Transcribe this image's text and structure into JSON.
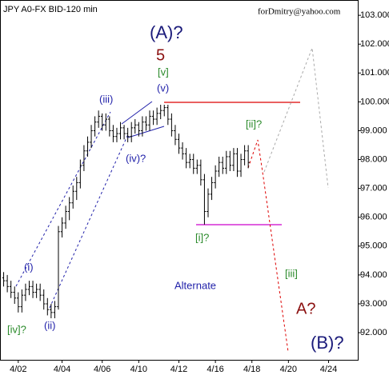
{
  "chart_data": {
    "type": "ohlc",
    "title": "JPY A0-FX BID-120 min",
    "subtitle": "forDmitry@yahoo.com",
    "color": "#000000",
    "xlim": [
      -1,
      97
    ],
    "xticks": [
      {
        "value": 4,
        "label": "4/02"
      },
      {
        "value": 16,
        "label": "4/04"
      },
      {
        "value": 27,
        "label": "4/06"
      },
      {
        "value": 37,
        "label": "4/10"
      },
      {
        "value": 48,
        "label": "4/12"
      },
      {
        "value": 58,
        "label": "4/16"
      },
      {
        "value": 68,
        "label": "4/18"
      },
      {
        "value": 78,
        "label": "4/20"
      },
      {
        "value": 89,
        "label": "4/24"
      }
    ],
    "ylim": [
      91.06,
      103.53
    ],
    "yticks": [
      {
        "value": 103,
        "label": "103.000"
      },
      {
        "value": 102,
        "label": "102.000"
      },
      {
        "value": 101,
        "label": "101.000"
      },
      {
        "value": 100,
        "label": "100.000"
      },
      {
        "value": 99,
        "label": "99.000"
      },
      {
        "value": 98,
        "label": "98.000"
      },
      {
        "value": 97,
        "label": "97.000"
      },
      {
        "value": 96,
        "label": "96.000"
      },
      {
        "value": 95,
        "label": "95.000"
      },
      {
        "value": 94,
        "label": "94.000"
      },
      {
        "value": 93,
        "label": "93.000"
      },
      {
        "value": 92,
        "label": "92.000"
      }
    ],
    "ohlc": [
      [
        93.9,
        94.1,
        93.6,
        93.8
      ],
      [
        93.8,
        94.0,
        93.4,
        93.6
      ],
      [
        93.6,
        93.8,
        93.2,
        93.4
      ],
      [
        93.4,
        93.6,
        93.0,
        93.2
      ],
      [
        93.2,
        93.4,
        92.7,
        92.9
      ],
      [
        92.9,
        93.5,
        92.7,
        93.3
      ],
      [
        93.3,
        93.7,
        93.1,
        93.5
      ],
      [
        93.5,
        93.8,
        93.3,
        93.6
      ],
      [
        93.6,
        93.8,
        93.2,
        93.4
      ],
      [
        93.4,
        93.7,
        93.2,
        93.5
      ],
      [
        93.5,
        93.7,
        93.1,
        93.3
      ],
      [
        93.3,
        93.5,
        92.8,
        93.0
      ],
      [
        93.0,
        93.2,
        92.6,
        92.8
      ],
      [
        92.8,
        93.0,
        92.5,
        92.7
      ],
      [
        92.7,
        93.1,
        92.5,
        92.9
      ],
      [
        92.9,
        95.7,
        92.8,
        95.5
      ],
      [
        95.5,
        96.0,
        95.3,
        95.8
      ],
      [
        95.8,
        96.4,
        95.6,
        96.2
      ],
      [
        96.2,
        96.7,
        95.9,
        96.5
      ],
      [
        96.5,
        97.1,
        96.3,
        96.9
      ],
      [
        96.9,
        97.4,
        96.6,
        97.2
      ],
      [
        97.2,
        98.0,
        97.0,
        97.8
      ],
      [
        97.8,
        98.5,
        97.6,
        98.3
      ],
      [
        98.3,
        98.8,
        98.1,
        98.6
      ],
      [
        98.6,
        99.2,
        98.4,
        99.0
      ],
      [
        99.0,
        99.5,
        98.8,
        99.3
      ],
      [
        99.3,
        99.7,
        99.1,
        99.5
      ],
      [
        99.5,
        99.6,
        99.0,
        99.2
      ],
      [
        99.2,
        99.6,
        99.0,
        99.4
      ],
      [
        99.4,
        99.5,
        98.8,
        99.0
      ],
      [
        99.0,
        99.2,
        98.6,
        98.8
      ],
      [
        98.8,
        99.1,
        98.6,
        98.9
      ],
      [
        98.9,
        99.3,
        98.7,
        99.1
      ],
      [
        99.1,
        99.2,
        98.7,
        98.9
      ],
      [
        98.9,
        99.1,
        98.6,
        98.8
      ],
      [
        98.8,
        99.3,
        98.6,
        99.1
      ],
      [
        99.1,
        99.4,
        98.9,
        99.2
      ],
      [
        99.2,
        99.3,
        98.8,
        99.0
      ],
      [
        99.0,
        99.5,
        98.8,
        99.3
      ],
      [
        99.3,
        99.5,
        99.0,
        99.2
      ],
      [
        99.2,
        99.7,
        99.0,
        99.5
      ],
      [
        99.5,
        99.7,
        99.2,
        99.4
      ],
      [
        99.4,
        99.8,
        99.2,
        99.6
      ],
      [
        99.6,
        99.9,
        99.4,
        99.7
      ],
      [
        99.7,
        99.9,
        99.5,
        99.8
      ],
      [
        99.8,
        99.9,
        99.2,
        99.4
      ],
      [
        99.4,
        99.6,
        98.8,
        99.0
      ],
      [
        99.0,
        99.2,
        98.5,
        98.7
      ],
      [
        98.7,
        98.9,
        98.2,
        98.4
      ],
      [
        98.4,
        98.6,
        98.0,
        98.2
      ],
      [
        98.2,
        98.4,
        97.7,
        97.9
      ],
      [
        97.9,
        98.2,
        97.7,
        98.0
      ],
      [
        98.0,
        98.2,
        97.5,
        97.7
      ],
      [
        97.7,
        98.0,
        97.5,
        97.8
      ],
      [
        97.8,
        98.0,
        97.1,
        97.3
      ],
      [
        97.3,
        97.5,
        95.75,
        96.2
      ],
      [
        96.2,
        97.0,
        96.0,
        96.8
      ],
      [
        96.8,
        97.4,
        96.6,
        97.2
      ],
      [
        97.2,
        97.8,
        97.0,
        97.6
      ],
      [
        97.6,
        98.1,
        97.4,
        97.9
      ],
      [
        97.9,
        98.1,
        97.5,
        97.7
      ],
      [
        97.7,
        98.3,
        97.5,
        98.1
      ],
      [
        98.1,
        98.3,
        97.6,
        97.8
      ],
      [
        97.8,
        98.4,
        97.6,
        98.2
      ],
      [
        98.2,
        98.4,
        97.4,
        97.6
      ],
      [
        97.6,
        98.2,
        97.4,
        98.0
      ],
      [
        98.0,
        98.5,
        97.8,
        98.3
      ],
      [
        98.3,
        98.5,
        97.7,
        97.9
      ]
    ],
    "annotations": [
      "(A)?",
      "5",
      "[v]",
      "(v)",
      "(iii)",
      "(iv)?",
      "[ii]?",
      "[i]?",
      "(i)",
      "(ii)",
      "[iv]?",
      "Alternate",
      "[iii]",
      "A?",
      "(B)?"
    ]
  }
}
